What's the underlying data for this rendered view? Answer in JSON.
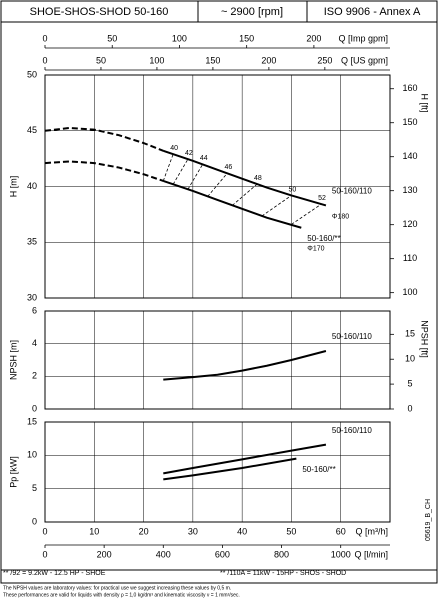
{
  "header": [
    "SHOE-SHOS-SHOD 50-160",
    "~ 2900 [rpm]",
    "ISO 9906 - Annex A"
  ],
  "chart_data": [
    {
      "type": "line",
      "ylabel": "H [m]",
      "y2label": "H [ft]",
      "xlim": [
        0,
        70
      ],
      "xticks": [
        0,
        10,
        20,
        30,
        40,
        50,
        60,
        70
      ],
      "ylim": [
        30,
        50
      ],
      "yticks": [
        30,
        35,
        40,
        45,
        50
      ],
      "y2lim": [
        98.43,
        164.04
      ],
      "y2ticks": [
        100,
        110,
        120,
        130,
        140,
        150,
        160
      ],
      "grid": true,
      "x2axes": [
        {
          "label": "Q [Imp gpm]",
          "xlim": [
            0,
            256.6
          ],
          "xticks": [
            0,
            50,
            100,
            150,
            200
          ]
        },
        {
          "label": "Q [US gpm]",
          "xlim": [
            0,
            308.2
          ],
          "xticks": [
            0,
            50,
            100,
            150,
            200,
            250
          ]
        }
      ],
      "series": [
        {
          "name": "50-160/110",
          "diameter": "Φ180",
          "color": "#000000",
          "x": [
            24,
            30,
            35,
            40,
            45,
            50,
            57
          ],
          "values": [
            43.2,
            42.3,
            41.5,
            40.7,
            39.9,
            39.2,
            38.3
          ],
          "dashed": {
            "x": [
              0,
              5,
              10,
              15,
              20,
              24
            ],
            "values": [
              45.0,
              45.25,
              45.1,
              44.6,
              43.9,
              43.2
            ]
          }
        },
        {
          "name": "50-160/**",
          "diameter": "Φ170",
          "color": "#000000",
          "x": [
            24,
            30,
            35,
            40,
            45,
            52
          ],
          "values": [
            40.5,
            39.6,
            38.8,
            38.0,
            37.2,
            36.3
          ],
          "dashed": {
            "x": [
              0,
              5,
              10,
              15,
              20,
              24
            ],
            "values": [
              42.1,
              42.25,
              42.1,
              41.7,
              41.1,
              40.5
            ]
          }
        }
      ],
      "efficiency_lines": [
        {
          "label": "40",
          "x": [
            24,
            26
          ],
          "y": [
            40.5,
            42.9
          ]
        },
        {
          "label": "42",
          "x": [
            26,
            29
          ],
          "y": [
            40.2,
            42.45
          ]
        },
        {
          "label": "44",
          "x": [
            29,
            32
          ],
          "y": [
            39.75,
            42.0
          ]
        },
        {
          "label": "46",
          "x": [
            33,
            37
          ],
          "y": [
            39.1,
            41.2
          ]
        },
        {
          "label": "48",
          "x": [
            38,
            43
          ],
          "y": [
            38.3,
            40.2
          ]
        },
        {
          "label": "50",
          "x": [
            44,
            50
          ],
          "y": [
            37.35,
            39.2
          ]
        },
        {
          "label": "52",
          "x": [
            50,
            56
          ],
          "y": [
            36.6,
            38.4
          ]
        }
      ]
    },
    {
      "type": "line",
      "ylabel": "NPSH [m]",
      "y2label": "NPSH [ft]",
      "xlim": [
        0,
        70
      ],
      "xticks": [
        0,
        10,
        20,
        30,
        40,
        50,
        60,
        70
      ],
      "ylim": [
        0,
        6
      ],
      "yticks": [
        0,
        2,
        4,
        6
      ],
      "y2lim": [
        0,
        19.685
      ],
      "y2ticks": [
        0,
        5,
        10,
        15
      ],
      "grid": true,
      "series": [
        {
          "name": "50-160/110",
          "color": "#000000",
          "x": [
            24,
            30,
            35,
            40,
            45,
            50,
            57
          ],
          "values": [
            1.8,
            1.95,
            2.1,
            2.35,
            2.65,
            3.0,
            3.55
          ]
        }
      ]
    },
    {
      "type": "line",
      "ylabel": "Pp [kW]",
      "xlabel": "Q [m³/h]",
      "xlim": [
        0,
        70
      ],
      "xticks": [
        0,
        10,
        20,
        30,
        40,
        50,
        60,
        70
      ],
      "ylim": [
        0,
        15
      ],
      "yticks": [
        0,
        5,
        10,
        15
      ],
      "grid": true,
      "x2axes": [
        {
          "label": "Q [l/min]",
          "xlim": [
            0,
            1166.7
          ],
          "xticks": [
            0,
            200,
            400,
            600,
            800,
            1000
          ]
        }
      ],
      "series": [
        {
          "name": "50-160/110",
          "color": "#000000",
          "x": [
            24,
            30,
            40,
            50,
            57
          ],
          "values": [
            7.3,
            8.1,
            9.4,
            10.7,
            11.6
          ]
        },
        {
          "name": "50-160/**",
          "color": "#000000",
          "x": [
            24,
            30,
            40,
            51
          ],
          "values": [
            6.4,
            7.0,
            8.1,
            9.5
          ]
        }
      ]
    }
  ],
  "footer": {
    "notes": [
      "The NPSH values are laboratory values: for practical use we suggest increasing these values by 0,5 m.",
      "These performances are valid for liquids with density ρ = 1,0 kg/dm³ and kinematic viscosity ν = 1 mm²/sec."
    ],
    "motors": [
      "** /92 = 9.2kW - 12.5 HP - SHOE",
      "** /110A = 11kW - 15HP - SHOS - SHOD"
    ],
    "code": "05619_B_CH"
  }
}
